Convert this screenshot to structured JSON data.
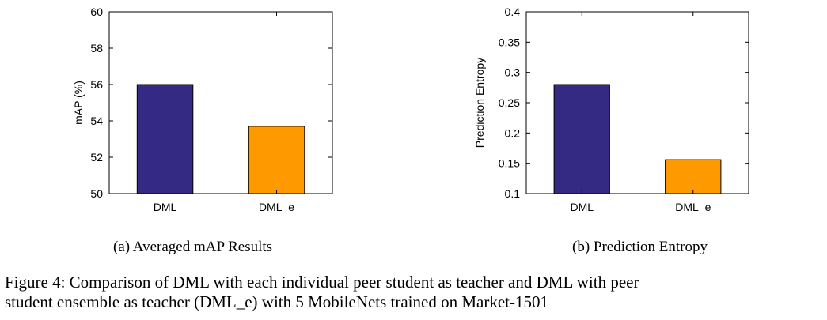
{
  "colors": {
    "DML": "#342a83",
    "DML_e": "#ff9900",
    "axis": "#000000"
  },
  "chart_data": [
    {
      "type": "bar",
      "categories": [
        "DML",
        "DML_e"
      ],
      "values": [
        56.0,
        53.7
      ],
      "title": "",
      "xlabel": "",
      "ylabel": "mAP (%)",
      "ylim": [
        50,
        60
      ],
      "yticks": [
        50,
        52,
        54,
        56,
        58,
        60
      ],
      "ytick_labels": [
        "50",
        "52",
        "54",
        "56",
        "58",
        "60"
      ],
      "grid": false,
      "legend": "none"
    },
    {
      "type": "bar",
      "categories": [
        "DML",
        "DML_e"
      ],
      "values": [
        0.28,
        0.156
      ],
      "title": "",
      "xlabel": "",
      "ylabel": "Prediction Entropy",
      "ylim": [
        0.1,
        0.4
      ],
      "yticks": [
        0.1,
        0.15,
        0.2,
        0.25,
        0.3,
        0.35,
        0.4
      ],
      "ytick_labels": [
        "0.1",
        "0.15",
        "0.2",
        "0.25",
        "0.3",
        "0.35",
        "0.4"
      ],
      "grid": false,
      "legend": "none"
    }
  ],
  "captions": {
    "sub_a": "(a) Averaged mAP Results",
    "sub_b": "(b) Prediction Entropy",
    "main_line1": "Figure 4: Comparison of DML with each individual peer student as teacher and DML with peer",
    "main_line2": "student ensemble as teacher (DML_e) with 5 MobileNets trained on Market-1501"
  }
}
